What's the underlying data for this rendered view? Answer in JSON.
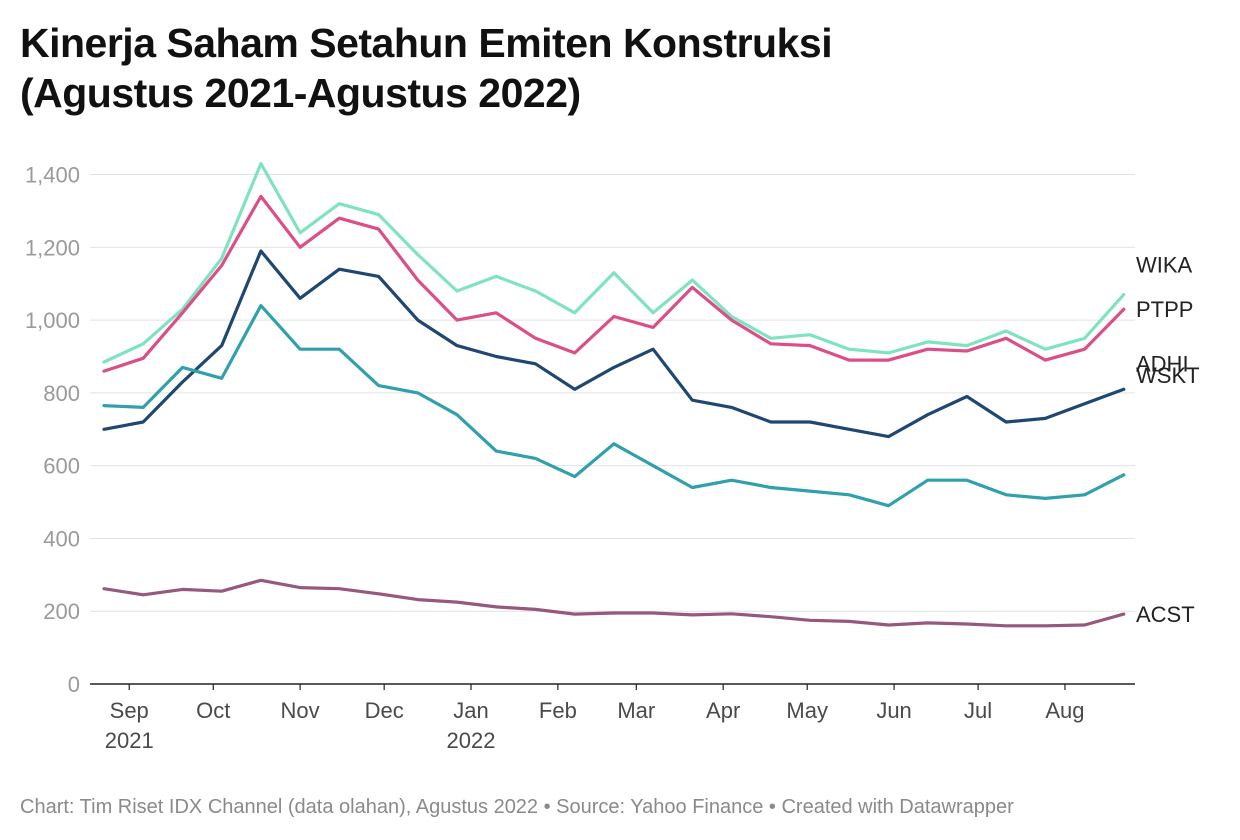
{
  "title_lines": [
    "Kinerja Saham Setahun Emiten Konstruksi",
    "(Agustus 2021-Agustus 2022)"
  ],
  "footer": "Chart: Tim Riset IDX Channel (data olahan), Agustus 2022 • Source: Yahoo Finance • Created with Datawrapper",
  "chart_data": {
    "type": "line",
    "grid": "horizontal",
    "ylim": [
      0,
      1440
    ],
    "yticks": [
      0,
      200,
      400,
      600,
      800,
      1000,
      1200,
      1400
    ],
    "ytick_labels": [
      "0",
      "200",
      "400",
      "600",
      "800",
      "1,000",
      "1,200",
      "1,400"
    ],
    "xlim": [
      "2021-08-18",
      "2022-08-26"
    ],
    "xticks": [
      {
        "date": "2021-09-01",
        "label": "Sep",
        "sublabel": "2021"
      },
      {
        "date": "2021-10-01",
        "label": "Oct",
        "sublabel": ""
      },
      {
        "date": "2021-11-01",
        "label": "Nov",
        "sublabel": ""
      },
      {
        "date": "2021-12-01",
        "label": "Dec",
        "sublabel": ""
      },
      {
        "date": "2022-01-01",
        "label": "Jan",
        "sublabel": "2022"
      },
      {
        "date": "2022-02-01",
        "label": "Feb",
        "sublabel": ""
      },
      {
        "date": "2022-03-01",
        "label": "Mar",
        "sublabel": ""
      },
      {
        "date": "2022-04-01",
        "label": "Apr",
        "sublabel": ""
      },
      {
        "date": "2022-05-01",
        "label": "May",
        "sublabel": ""
      },
      {
        "date": "2022-06-01",
        "label": "Jun",
        "sublabel": ""
      },
      {
        "date": "2022-07-01",
        "label": "Jul",
        "sublabel": ""
      },
      {
        "date": "2022-08-01",
        "label": "Aug",
        "sublabel": ""
      }
    ],
    "x": [
      "2021-08-23",
      "2021-09-06",
      "2021-09-20",
      "2021-10-04",
      "2021-10-18",
      "2021-11-01",
      "2021-11-15",
      "2021-11-29",
      "2021-12-13",
      "2021-12-27",
      "2022-01-10",
      "2022-01-24",
      "2022-02-07",
      "2022-02-21",
      "2022-03-07",
      "2022-03-21",
      "2022-04-04",
      "2022-04-18",
      "2022-05-02",
      "2022-05-16",
      "2022-05-30",
      "2022-06-13",
      "2022-06-27",
      "2022-07-11",
      "2022-07-25",
      "2022-08-08",
      "2022-08-22"
    ],
    "series": [
      {
        "name": "WIKA",
        "color": "#7fe3c0",
        "values": [
          885,
          935,
          1030,
          1170,
          1430,
          1240,
          1320,
          1290,
          1180,
          1080,
          1120,
          1080,
          1020,
          1130,
          1020,
          1110,
          1010,
          950,
          960,
          920,
          910,
          940,
          930,
          970,
          920,
          950,
          1070
        ]
      },
      {
        "name": "PTPP",
        "color": "#db4e87",
        "values": [
          860,
          895,
          1020,
          1150,
          1340,
          1200,
          1280,
          1250,
          1110,
          1000,
          1020,
          950,
          910,
          1010,
          980,
          1090,
          1000,
          935,
          930,
          890,
          890,
          920,
          915,
          950,
          890,
          920,
          1030
        ]
      },
      {
        "name": "ADHI",
        "color": "#1f4771",
        "values": [
          700,
          720,
          830,
          930,
          1190,
          1060,
          1140,
          1120,
          1000,
          930,
          900,
          880,
          810,
          870,
          920,
          780,
          760,
          720,
          720,
          700,
          680,
          740,
          790,
          720,
          730,
          770,
          810
        ]
      },
      {
        "name": "WSKT",
        "color": "#30a0ad",
        "values": [
          765,
          760,
          870,
          840,
          1040,
          920,
          920,
          820,
          800,
          740,
          640,
          620,
          570,
          660,
          600,
          540,
          560,
          540,
          530,
          520,
          490,
          560,
          560,
          520,
          510,
          520,
          575
        ]
      },
      {
        "name": "ACST",
        "color": "#96597d",
        "values": [
          262,
          245,
          260,
          255,
          285,
          265,
          262,
          248,
          232,
          225,
          212,
          205,
          192,
          195,
          195,
          190,
          193,
          185,
          175,
          172,
          162,
          168,
          165,
          160,
          160,
          162,
          192
        ]
      }
    ]
  }
}
